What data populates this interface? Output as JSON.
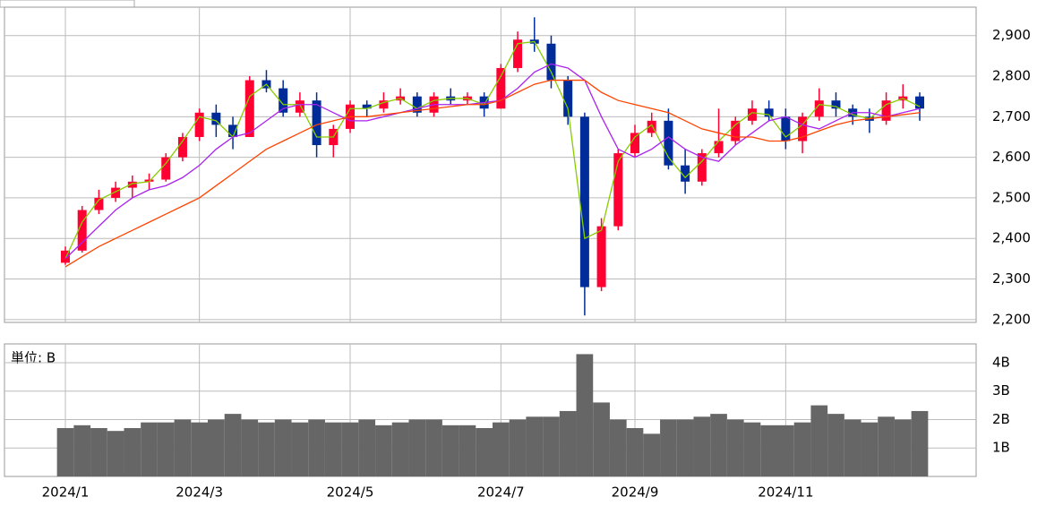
{
  "chart_data": [
    {
      "type": "candlestick",
      "open": [
        2340,
        2370,
        2470,
        2500,
        2525,
        2540,
        2545,
        2600,
        2650,
        2710,
        2680,
        2650,
        2790,
        2770,
        2710,
        2740,
        2630,
        2670,
        2730,
        2720,
        2740,
        2750,
        2710,
        2750,
        2740,
        2750,
        2720,
        2820,
        2890,
        2880,
        2790,
        2700,
        2280,
        2430,
        2610,
        2660,
        2690,
        2580,
        2540,
        2610,
        2640,
        2690,
        2720,
        2700,
        2640,
        2700,
        2740,
        2720,
        2700,
        2690,
        2740,
        2750
      ],
      "high": [
        2380,
        2480,
        2520,
        2540,
        2555,
        2560,
        2610,
        2660,
        2720,
        2730,
        2700,
        2800,
        2815,
        2790,
        2760,
        2760,
        2680,
        2740,
        2740,
        2760,
        2770,
        2760,
        2760,
        2770,
        2760,
        2760,
        2830,
        2910,
        2945,
        2900,
        2800,
        2710,
        2450,
        2620,
        2680,
        2710,
        2720,
        2620,
        2620,
        2720,
        2700,
        2740,
        2740,
        2720,
        2710,
        2770,
        2760,
        2730,
        2720,
        2760,
        2780,
        2760
      ],
      "low": [
        2335,
        2365,
        2460,
        2490,
        2500,
        2520,
        2540,
        2590,
        2640,
        2650,
        2620,
        2650,
        2760,
        2700,
        2700,
        2600,
        2600,
        2660,
        2700,
        2710,
        2730,
        2700,
        2700,
        2730,
        2730,
        2700,
        2720,
        2810,
        2860,
        2770,
        2680,
        2210,
        2270,
        2420,
        2600,
        2650,
        2570,
        2510,
        2530,
        2600,
        2630,
        2680,
        2690,
        2620,
        2610,
        2690,
        2700,
        2680,
        2660,
        2680,
        2720,
        2690
      ],
      "close": [
        2370,
        2470,
        2500,
        2525,
        2540,
        2545,
        2600,
        2650,
        2710,
        2680,
        2650,
        2790,
        2770,
        2710,
        2740,
        2630,
        2670,
        2730,
        2720,
        2740,
        2750,
        2710,
        2750,
        2740,
        2750,
        2720,
        2820,
        2890,
        2880,
        2790,
        2700,
        2280,
        2430,
        2610,
        2660,
        2690,
        2580,
        2540,
        2610,
        2640,
        2690,
        2720,
        2700,
        2640,
        2700,
        2740,
        2720,
        2700,
        2690,
        2740,
        2750,
        2720
      ],
      "up_color": "#ff0033",
      "down_color": "#002c99",
      "lines": [
        {
          "color": "#88cc00",
          "values": [
            2350,
            2440,
            2495,
            2515,
            2535,
            2540,
            2585,
            2640,
            2700,
            2690,
            2650,
            2750,
            2780,
            2730,
            2730,
            2650,
            2650,
            2720,
            2720,
            2735,
            2745,
            2720,
            2740,
            2745,
            2745,
            2730,
            2800,
            2880,
            2885,
            2810,
            2720,
            2400,
            2420,
            2590,
            2650,
            2680,
            2600,
            2550,
            2590,
            2640,
            2680,
            2710,
            2705,
            2650,
            2680,
            2730,
            2725,
            2705,
            2695,
            2730,
            2745,
            2725
          ]
        },
        {
          "color": "#aa22ee",
          "values": [
            2350,
            2390,
            2430,
            2470,
            2500,
            2520,
            2530,
            2550,
            2580,
            2620,
            2650,
            2660,
            2690,
            2720,
            2730,
            2730,
            2710,
            2690,
            2690,
            2700,
            2710,
            2720,
            2730,
            2730,
            2730,
            2735,
            2740,
            2770,
            2810,
            2830,
            2820,
            2790,
            2700,
            2620,
            2600,
            2620,
            2650,
            2620,
            2600,
            2590,
            2630,
            2660,
            2690,
            2700,
            2680,
            2670,
            2690,
            2710,
            2710,
            2700,
            2710,
            2720
          ]
        },
        {
          "color": "#ff4400",
          "values": [
            2330,
            2355,
            2380,
            2400,
            2420,
            2440,
            2460,
            2480,
            2500,
            2530,
            2560,
            2590,
            2620,
            2640,
            2660,
            2680,
            2690,
            2700,
            2700,
            2705,
            2710,
            2715,
            2720,
            2725,
            2730,
            2730,
            2740,
            2760,
            2780,
            2790,
            2790,
            2790,
            2760,
            2740,
            2730,
            2720,
            2710,
            2690,
            2670,
            2660,
            2650,
            2650,
            2640,
            2640,
            2650,
            2665,
            2680,
            2690,
            2695,
            2700,
            2705,
            2710
          ]
        }
      ],
      "ylim": [
        2193,
        2970
      ],
      "yticks": [
        {
          "value": 2200,
          "label": "2,200"
        },
        {
          "value": 2300,
          "label": "2,300"
        },
        {
          "value": 2400,
          "label": "2,400"
        },
        {
          "value": 2500,
          "label": "2,500"
        },
        {
          "value": 2600,
          "label": "2,600"
        },
        {
          "value": 2700,
          "label": "2,700"
        },
        {
          "value": 2800,
          "label": "2,800"
        },
        {
          "value": 2900,
          "label": "2,900"
        }
      ],
      "grid": true
    },
    {
      "type": "bar",
      "title": "単位: B",
      "categories": [
        "2024/1",
        null,
        null,
        null,
        null,
        null,
        null,
        null,
        "2024/3",
        null,
        null,
        null,
        null,
        null,
        null,
        null,
        null,
        "2024/5",
        null,
        null,
        null,
        null,
        null,
        null,
        null,
        null,
        "2024/7",
        null,
        null,
        null,
        null,
        null,
        null,
        null,
        "2024/9",
        null,
        null,
        null,
        null,
        null,
        null,
        null,
        null,
        "2024/11",
        null,
        null,
        null,
        null,
        null,
        null,
        null,
        null
      ],
      "values": [
        1.7,
        1.8,
        1.7,
        1.6,
        1.7,
        1.9,
        1.9,
        2.0,
        1.9,
        2.0,
        2.2,
        2.0,
        1.9,
        2.0,
        1.9,
        2.0,
        1.9,
        1.9,
        2.0,
        1.8,
        1.9,
        2.0,
        2.0,
        1.8,
        1.8,
        1.7,
        1.9,
        2.0,
        2.1,
        2.1,
        2.3,
        4.3,
        2.6,
        2.0,
        1.7,
        1.5,
        2.0,
        2.0,
        2.1,
        2.2,
        2.0,
        1.9,
        1.8,
        1.8,
        1.9,
        2.5,
        2.2,
        2.0,
        1.9,
        2.1,
        2.0,
        2.3
      ],
      "color": "#666666",
      "ylim": [
        0,
        4.66
      ],
      "yticks": [
        {
          "value": 1,
          "label": "1B"
        },
        {
          "value": 2,
          "label": "2B"
        },
        {
          "value": 3,
          "label": "3B"
        },
        {
          "value": 4,
          "label": "4B"
        }
      ],
      "grid": true
    }
  ]
}
